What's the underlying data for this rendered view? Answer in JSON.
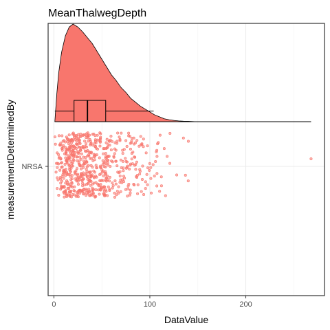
{
  "chart_data": {
    "type": "raincloud",
    "title": "MeanThalwegDepth",
    "xlabel": "DataValue",
    "ylabel": "measurementDeterminedBy",
    "xlim": [
      -6,
      282
    ],
    "xticks": [
      0,
      100,
      200
    ],
    "categories": [
      "NRSA"
    ],
    "grid": true,
    "colors": {
      "fill": "#F8766D",
      "outline": "#000000",
      "grid": "#ebebeb",
      "axis": "#333333"
    },
    "density": {
      "x": [
        1,
        3,
        5,
        8,
        12,
        16,
        20,
        25,
        30,
        35,
        40,
        45,
        50,
        55,
        60,
        65,
        70,
        75,
        80,
        85,
        90,
        95,
        100,
        105,
        110,
        115,
        120,
        125,
        130,
        135,
        140,
        145,
        148
      ],
      "y": [
        0.0,
        0.28,
        0.5,
        0.71,
        0.88,
        0.97,
        1.0,
        0.97,
        0.92,
        0.86,
        0.8,
        0.72,
        0.64,
        0.56,
        0.48,
        0.42,
        0.35,
        0.3,
        0.24,
        0.2,
        0.16,
        0.13,
        0.1,
        0.07,
        0.05,
        0.03,
        0.02,
        0.013,
        0.008,
        0.005,
        0.004,
        0.002,
        0.0
      ]
    },
    "boxplot": {
      "whisker_low": 1,
      "q1": 21,
      "median": 35,
      "q3": 54,
      "whisker_high": 104,
      "max": 268
    },
    "outliers": [
      108,
      112,
      115,
      118,
      121,
      128,
      135,
      140,
      268
    ]
  }
}
